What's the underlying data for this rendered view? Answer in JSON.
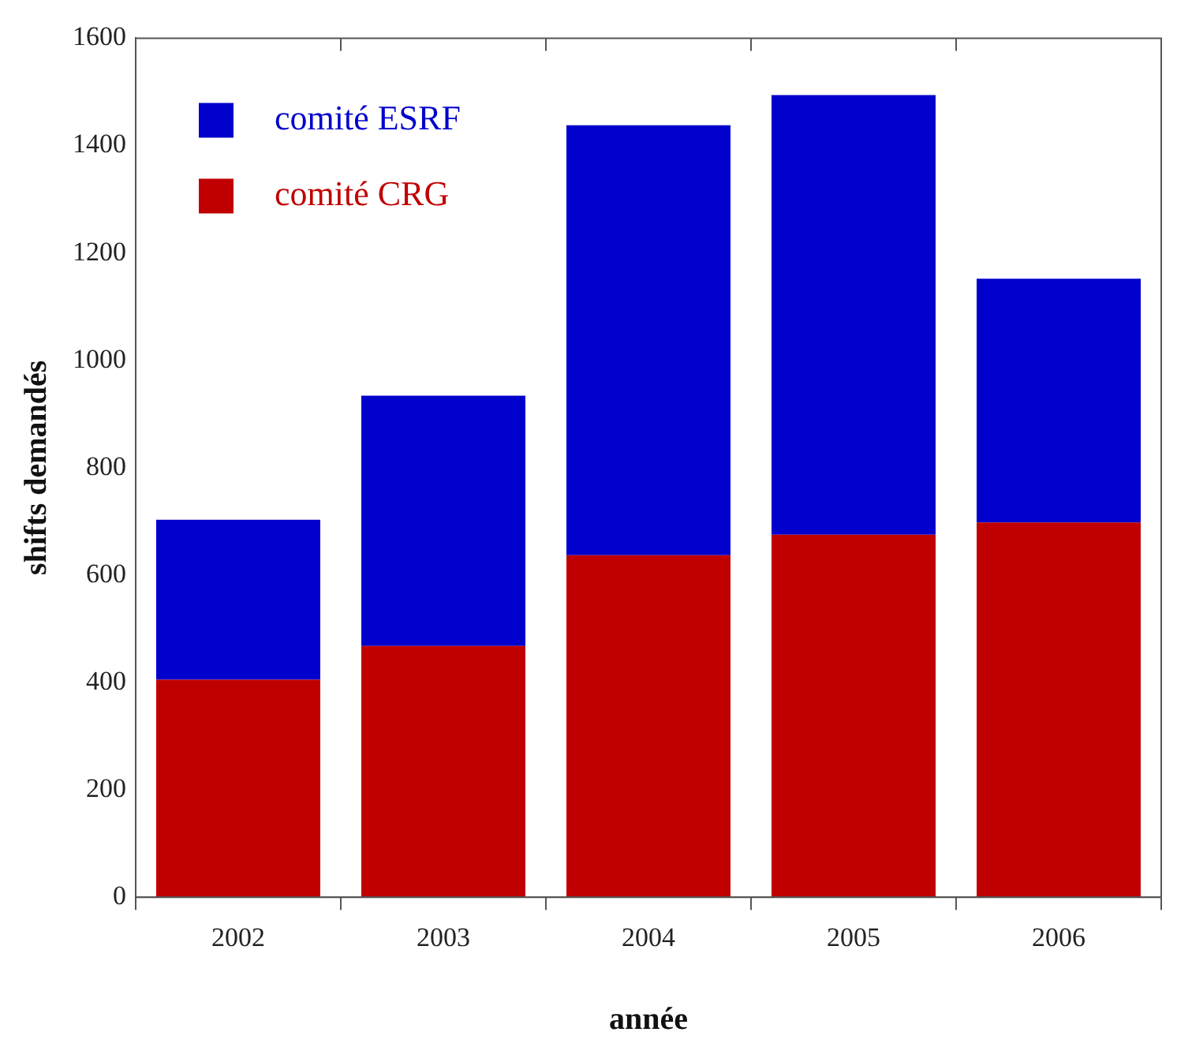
{
  "chart_data": {
    "type": "bar",
    "stacked": true,
    "xlabel": "année",
    "ylabel": "shifts demandés",
    "categories": [
      "2002",
      "2003",
      "2004",
      "2005",
      "2006"
    ],
    "series": [
      {
        "name": "comité CRG",
        "color": "#c00000",
        "values": [
          405,
          468,
          637,
          675,
          698
        ]
      },
      {
        "name": "comité ESRF",
        "color": "#0000cc",
        "values": [
          298,
          466,
          801,
          819,
          454
        ]
      }
    ],
    "ylim": [
      0,
      1600
    ],
    "yticks": [
      0,
      200,
      400,
      600,
      800,
      1000,
      1200,
      1400,
      1600
    ],
    "grid": false,
    "legend": "top left"
  }
}
